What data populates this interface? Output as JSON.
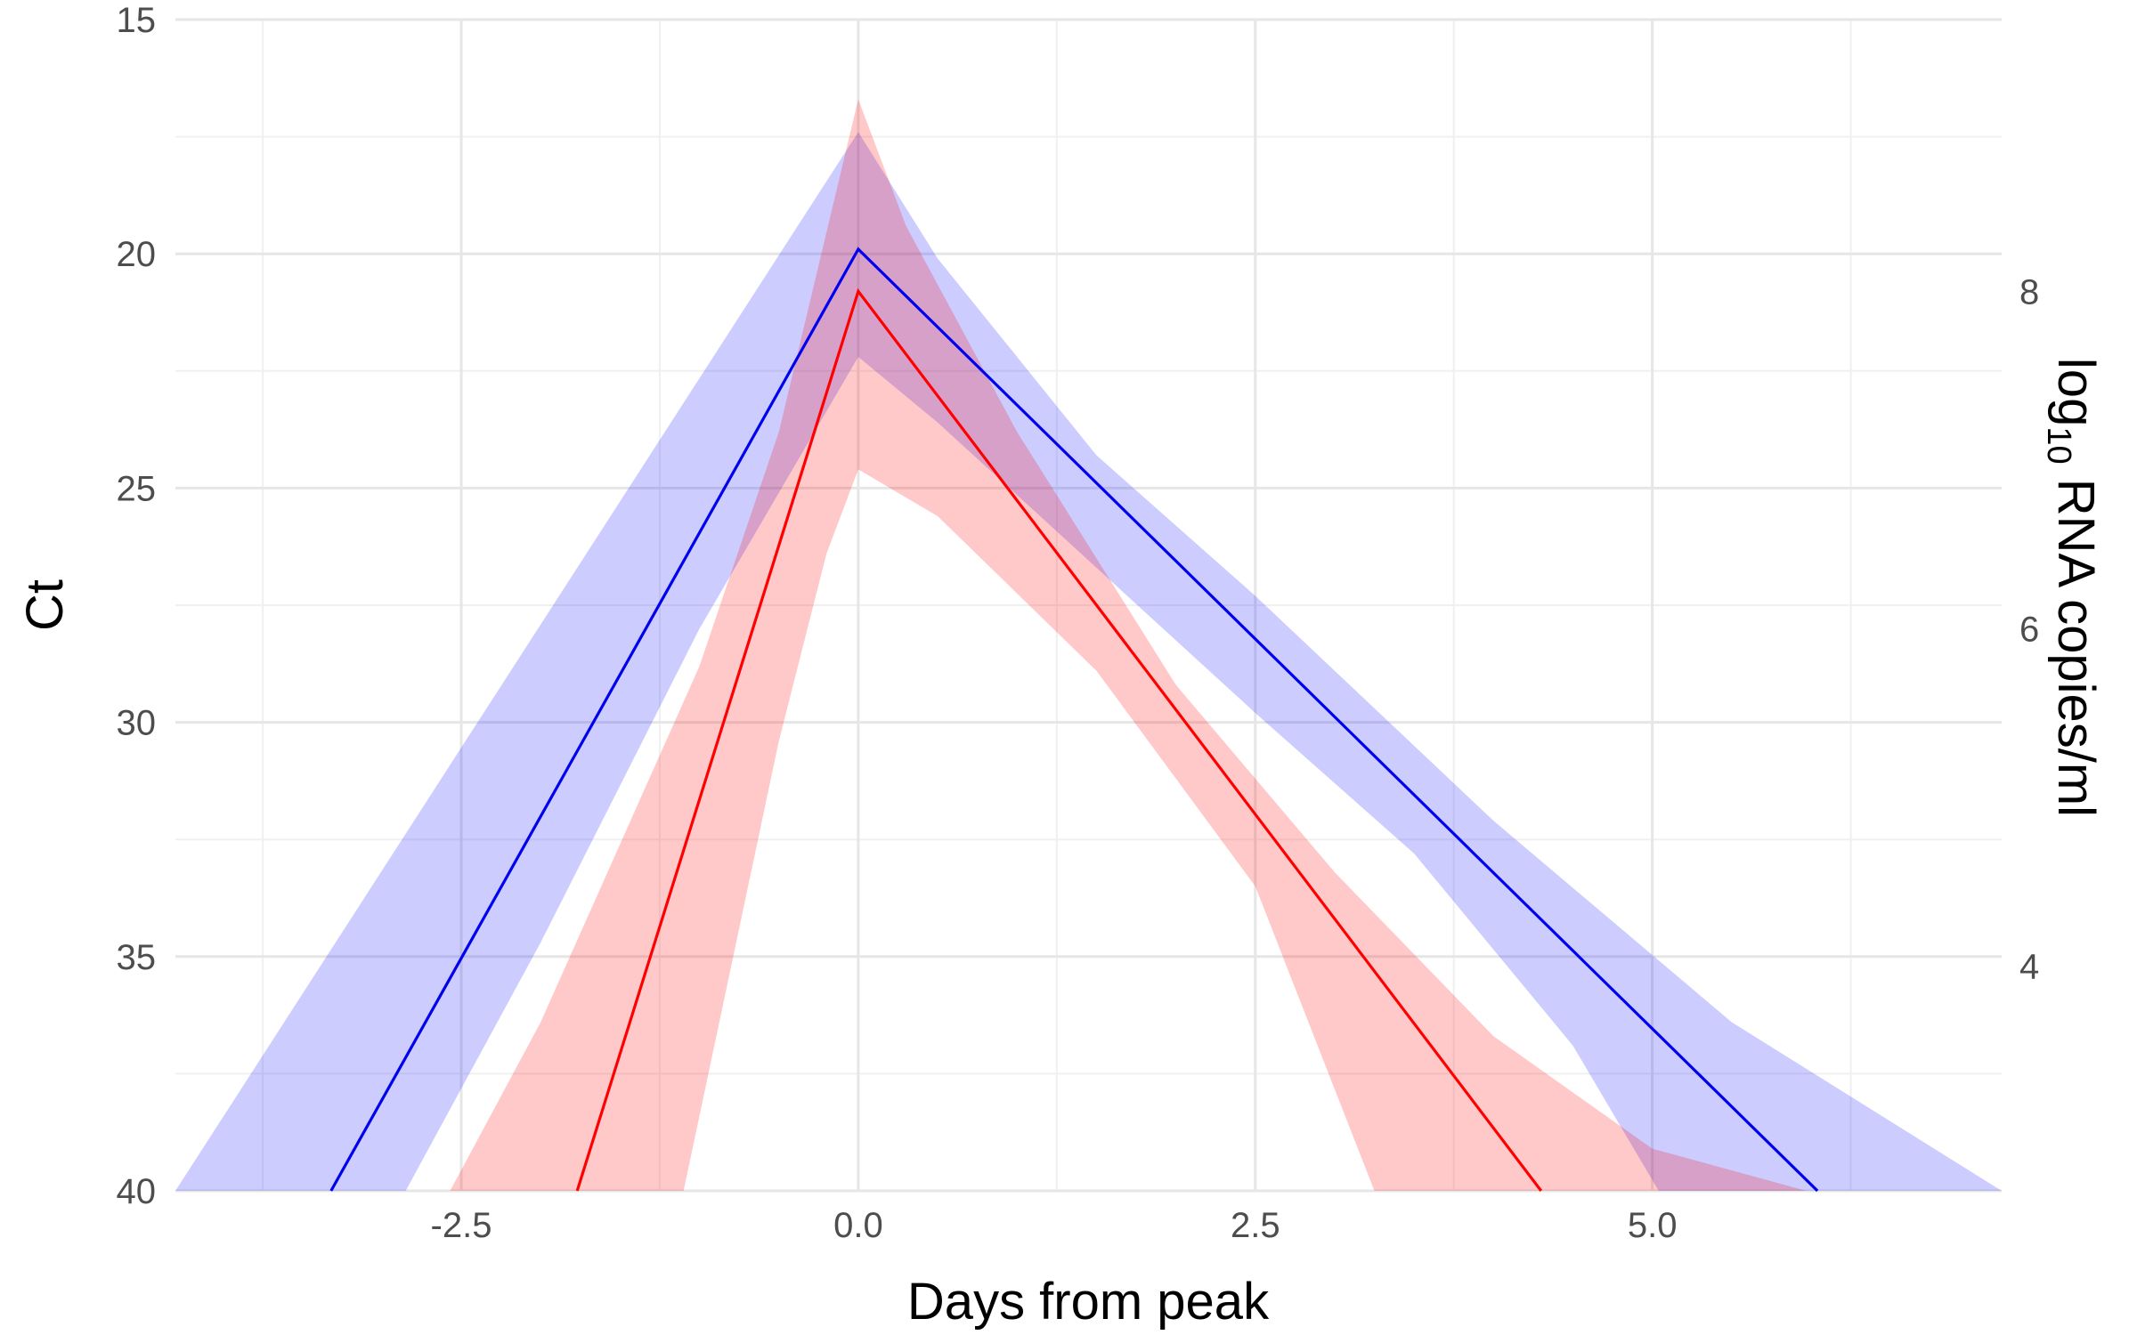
{
  "chart_data": {
    "type": "line",
    "xlabel": "Days from peak",
    "ylabel": "Ct",
    "y2label": {
      "prefix": "log",
      "subscript": "10",
      "suffix": " RNA copies/ml"
    },
    "xlim": [
      -4.3,
      7.2
    ],
    "ylim": [
      15,
      40
    ],
    "y_reversed": true,
    "x_ticks": [
      -2.5,
      0.0,
      2.5,
      5.0
    ],
    "x_tick_labels": [
      "-2.5",
      "0.0",
      "2.5",
      "5.0"
    ],
    "y_ticks": [
      15,
      20,
      25,
      30,
      35,
      40
    ],
    "y_tick_labels": [
      "15",
      "20",
      "25",
      "30",
      "35",
      "40"
    ],
    "y2_ticks": [
      8,
      6,
      4
    ],
    "y2_tick_labels": [
      "8",
      "6",
      "4"
    ],
    "y2_tick_ct_positions": [
      20.8,
      28.0,
      35.2
    ],
    "grid": true,
    "colors": {
      "blue": "#0000ee",
      "blue_band": "#0000ff",
      "red": "#ff0000",
      "red_band": "#ff0000",
      "grid_major": "#e6e6e6",
      "grid_minor": "#f0f0f0"
    },
    "series": [
      {
        "color_key": "blue",
        "line": [
          [
            -3.32,
            40
          ],
          [
            0.0,
            19.9
          ],
          [
            6.04,
            40
          ]
        ],
        "band_lower": [
          [
            -4.3,
            40
          ],
          [
            0.0,
            17.4
          ],
          [
            0.5,
            20.1
          ],
          [
            1.5,
            24.3
          ],
          [
            2.5,
            27.3
          ],
          [
            4.0,
            32.1
          ],
          [
            5.5,
            36.4
          ],
          [
            7.2,
            40
          ]
        ],
        "band_upper": [
          [
            -2.85,
            40
          ],
          [
            -2.0,
            34.7
          ],
          [
            -1.0,
            28.0
          ],
          [
            0.0,
            22.2
          ],
          [
            0.5,
            23.6
          ],
          [
            1.5,
            26.7
          ],
          [
            2.5,
            29.8
          ],
          [
            3.5,
            32.8
          ],
          [
            4.5,
            36.9
          ],
          [
            5.04,
            40
          ]
        ]
      },
      {
        "color_key": "red",
        "line": [
          [
            -1.77,
            40
          ],
          [
            0.0,
            20.8
          ],
          [
            4.3,
            40
          ]
        ],
        "band_lower": [
          [
            -2.57,
            40
          ],
          [
            -2.0,
            36.4
          ],
          [
            -1.0,
            28.8
          ],
          [
            -0.5,
            23.8
          ],
          [
            0.0,
            16.7
          ],
          [
            0.3,
            19.4
          ],
          [
            1.0,
            23.8
          ],
          [
            2.0,
            29.2
          ],
          [
            3.0,
            33.2
          ],
          [
            4.0,
            36.7
          ],
          [
            5.0,
            39.1
          ],
          [
            5.97,
            40
          ]
        ],
        "band_upper": [
          [
            -1.1,
            40
          ],
          [
            -0.5,
            30.4
          ],
          [
            -0.2,
            26.4
          ],
          [
            0.0,
            24.6
          ],
          [
            0.5,
            25.6
          ],
          [
            1.5,
            28.9
          ],
          [
            2.5,
            33.5
          ],
          [
            3.25,
            40
          ]
        ]
      }
    ]
  }
}
